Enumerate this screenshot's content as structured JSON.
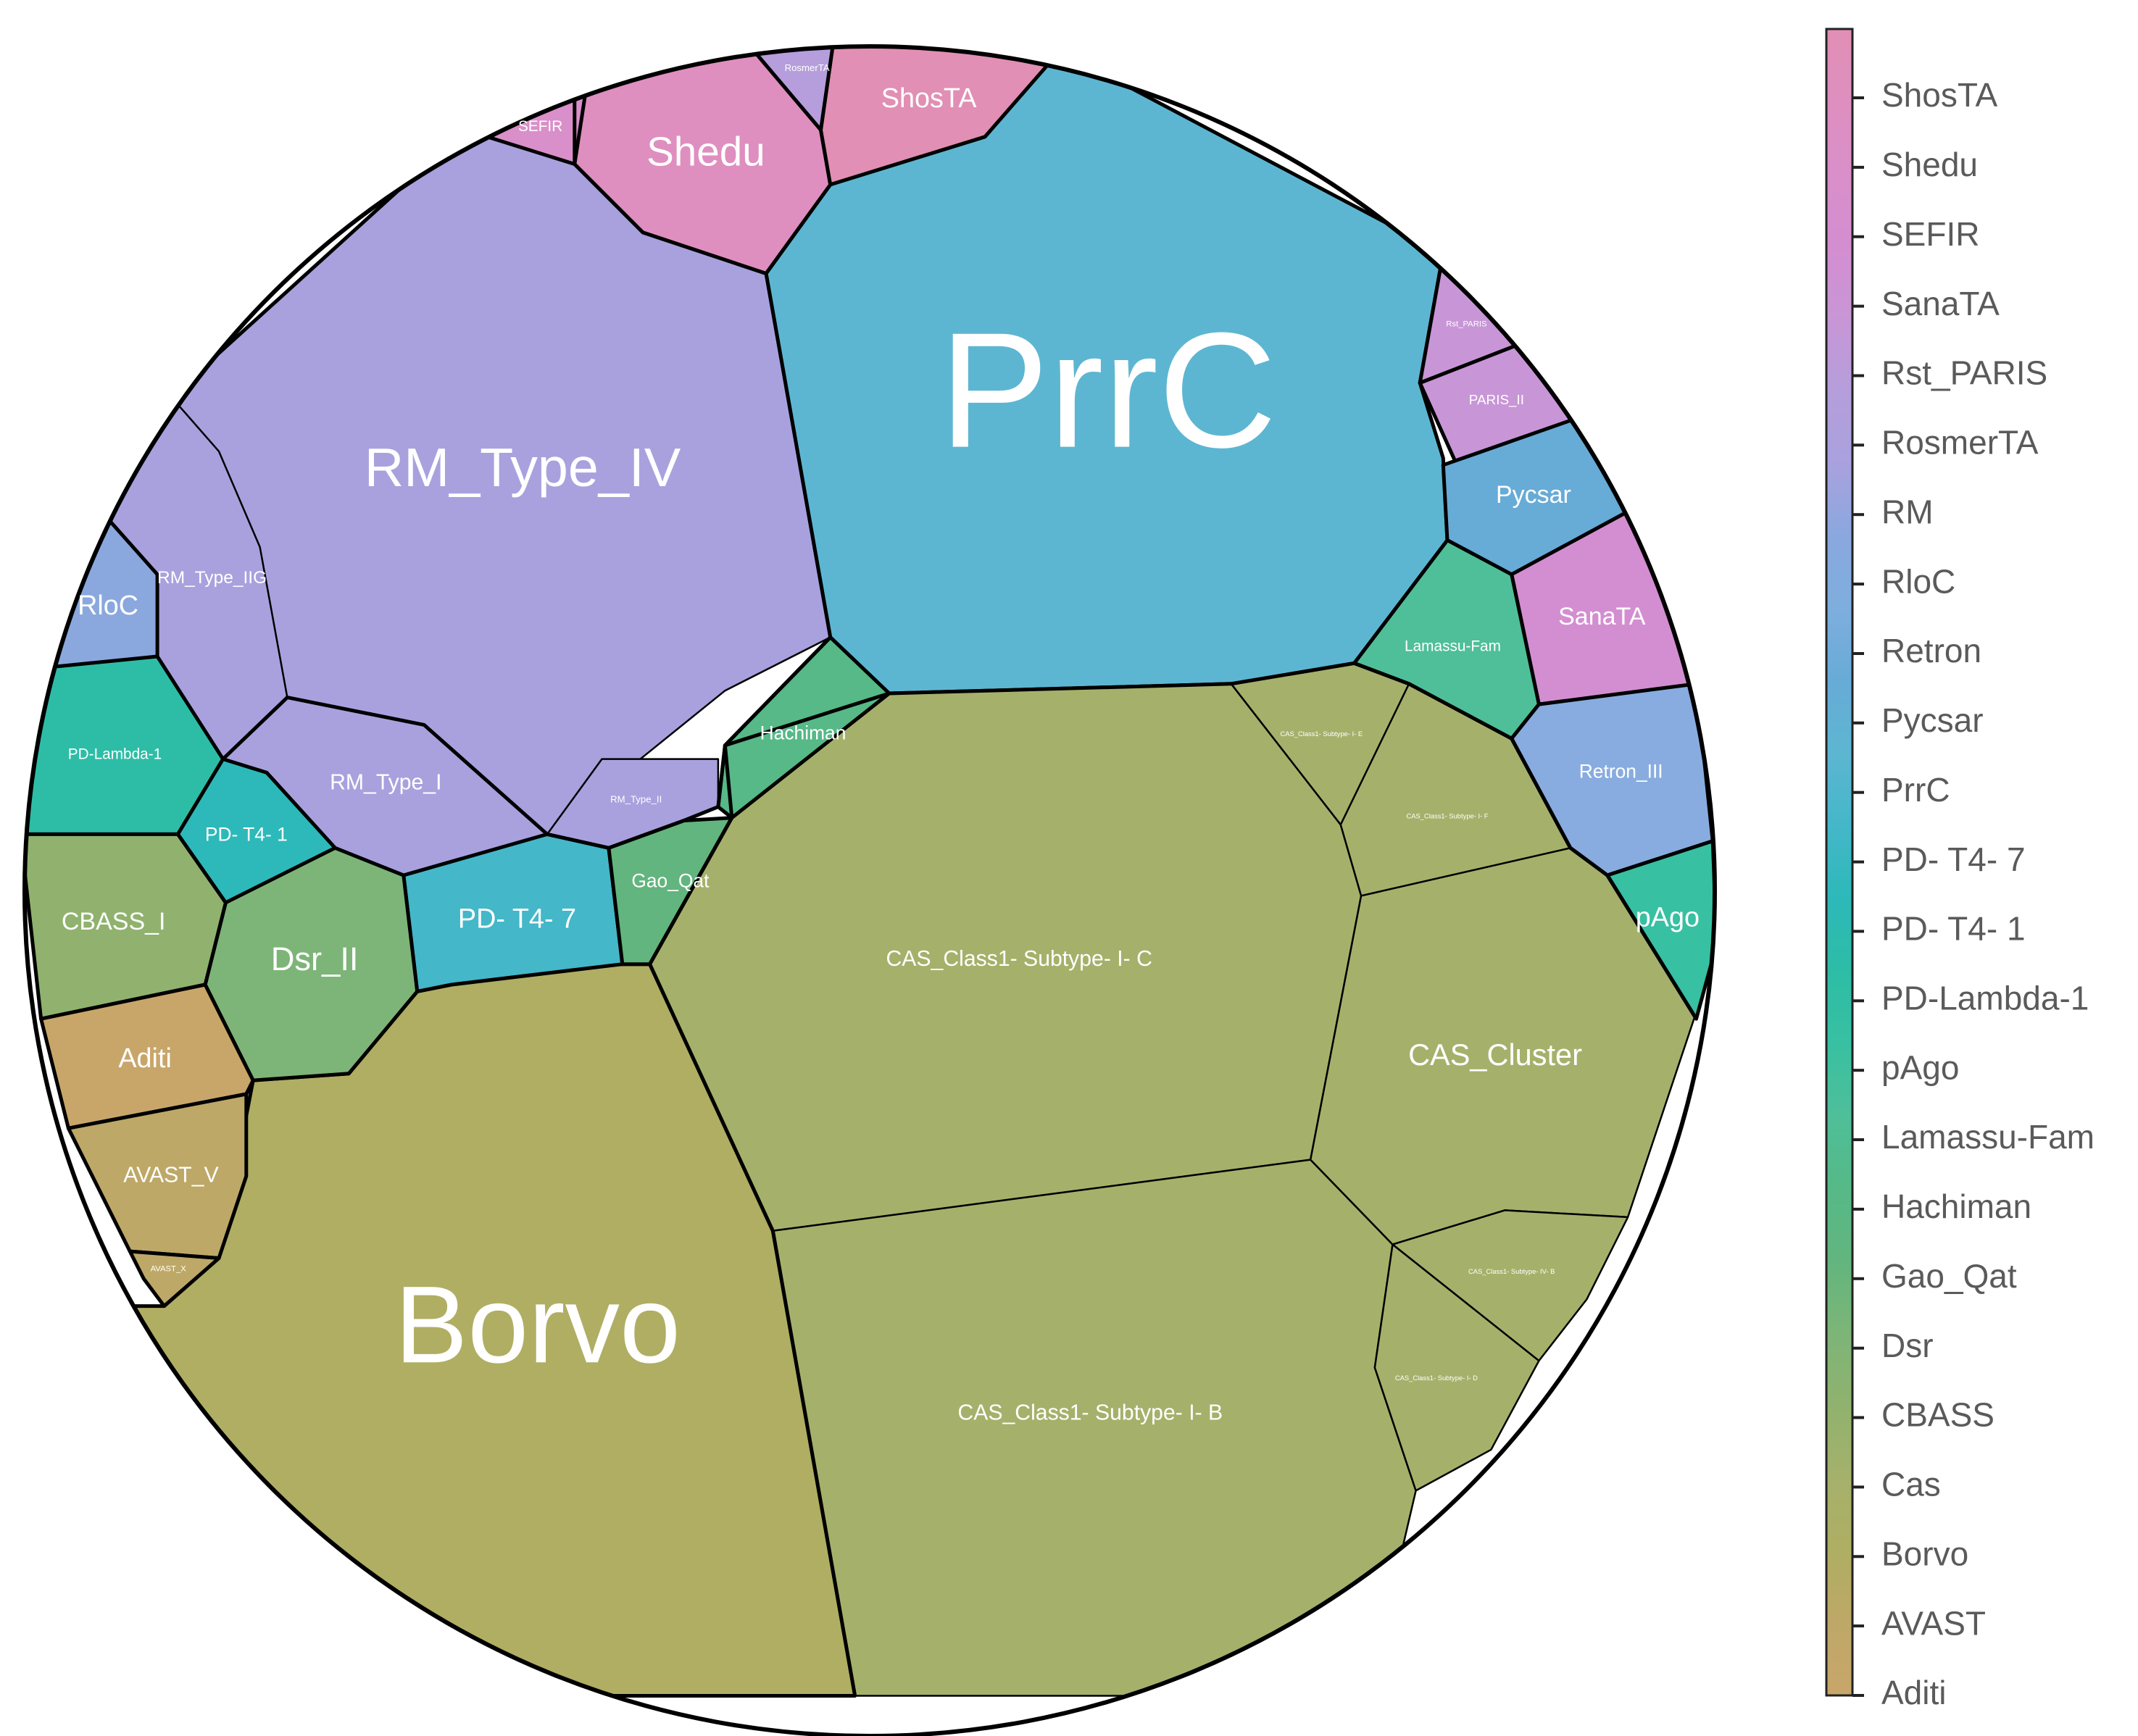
{
  "chart_data": {
    "type": "voronoi-treemap",
    "title": "",
    "cells": [
      {
        "label": "PrrC",
        "group": "PrrC",
        "color": "#5DB6D1"
      },
      {
        "label": "RM_Type_IV",
        "group": "RM",
        "color": "#A9A1DE"
      },
      {
        "label": "RM_Type_IIG",
        "group": "RM",
        "color": "#A9A1DE"
      },
      {
        "label": "RM_Type_I",
        "group": "RM",
        "color": "#A9A1DE"
      },
      {
        "label": "RM_Type_II",
        "group": "RM",
        "color": "#A9A1DE"
      },
      {
        "label": "Borvo",
        "group": "Borvo",
        "color": "#AFAE63"
      },
      {
        "label": "CAS_Class1- Subtype- I- C",
        "group": "Cas",
        "color": "#A5B16B"
      },
      {
        "label": "CAS_Class1- Subtype- I- B",
        "group": "Cas",
        "color": "#A5B16B"
      },
      {
        "label": "CAS_Cluster",
        "group": "Cas",
        "color": "#A5B16B"
      },
      {
        "label": "CAS_Class1- Subtype- I- E",
        "group": "Cas",
        "color": "#A5B16B"
      },
      {
        "label": "CAS_Class1- Subtype- I- F",
        "group": "Cas",
        "color": "#A5B16B"
      },
      {
        "label": "CAS_Class1- Subtype- IV- B",
        "group": "Cas",
        "color": "#A5B16B"
      },
      {
        "label": "CAS_Class1- Subtype- I- D",
        "group": "Cas",
        "color": "#A5B16B"
      },
      {
        "label": "Shedu",
        "group": "Shedu",
        "color": "#DE8FBF"
      },
      {
        "label": "ShosTA",
        "group": "ShosTA",
        "color": "#E18FB5"
      },
      {
        "label": "SEFIR",
        "group": "SEFIR",
        "color": "#D98FC9"
      },
      {
        "label": "RosmerTA",
        "group": "RosmerTA",
        "color": "#B59EDB"
      },
      {
        "label": "Rst_PARIS",
        "group": "Rst_PARIS",
        "color": "#C896D6"
      },
      {
        "label": "PARIS_II",
        "group": "Rst_PARIS",
        "color": "#C896D6"
      },
      {
        "label": "Pycsar",
        "group": "Pycsar",
        "color": "#67ABD7"
      },
      {
        "label": "SanaTA",
        "group": "SanaTA",
        "color": "#D38ED1"
      },
      {
        "label": "Lamassu-Fam",
        "group": "Lamassu-Fam",
        "color": "#4FBF99"
      },
      {
        "label": "Retron_III",
        "group": "Retron",
        "color": "#88ACDF"
      },
      {
        "label": "pAgo",
        "group": "pAgo",
        "color": "#38C0A2"
      },
      {
        "label": "RloC",
        "group": "RloC",
        "color": "#8AA8DE"
      },
      {
        "label": "PD-Lambda-1",
        "group": "PD-Lambda-1",
        "color": "#2DBDA6"
      },
      {
        "label": "PD- T4- 1",
        "group": "PD- T4- 1",
        "color": "#2DB9B9"
      },
      {
        "label": "PD- T4- 7",
        "group": "PD- T4- 7",
        "color": "#44B7C9"
      },
      {
        "label": "Hachiman",
        "group": "Hachiman",
        "color": "#56B987"
      },
      {
        "label": "Gao_Qat",
        "group": "Gao_Qat",
        "color": "#62B57E"
      },
      {
        "label": "Dsr_II",
        "group": "Dsr",
        "color": "#7DB578"
      },
      {
        "label": "CBASS_I",
        "group": "CBASS",
        "color": "#90B26E"
      },
      {
        "label": "Aditi",
        "group": "Aditi",
        "color": "#C8A66A"
      },
      {
        "label": "AVAST_V",
        "group": "AVAST",
        "color": "#BEA867"
      },
      {
        "label": "AVAST_X",
        "group": "AVAST",
        "color": "#BEA867"
      }
    ],
    "legend": {
      "placement": "right",
      "type": "colorbar",
      "entries": [
        {
          "label": "ShosTA",
          "color": "#E18FB5"
        },
        {
          "label": "Shedu",
          "color": "#DE8FBF"
        },
        {
          "label": "SEFIR",
          "color": "#D98FC9"
        },
        {
          "label": "SanaTA",
          "color": "#D38ED1"
        },
        {
          "label": "Rst_PARIS",
          "color": "#C896D6"
        },
        {
          "label": "RosmerTA",
          "color": "#B59EDB"
        },
        {
          "label": "RM",
          "color": "#A9A1DE"
        },
        {
          "label": "RloC",
          "color": "#8AA8DE"
        },
        {
          "label": "Retron",
          "color": "#7EAEDD"
        },
        {
          "label": "Pycsar",
          "color": "#67ABD7"
        },
        {
          "label": "PrrC",
          "color": "#5DB6D1"
        },
        {
          "label": "PD- T4- 7",
          "color": "#44B7C9"
        },
        {
          "label": "PD- T4- 1",
          "color": "#2DB9B9"
        },
        {
          "label": "PD-Lambda-1",
          "color": "#2DBDA6"
        },
        {
          "label": "pAgo",
          "color": "#38C0A2"
        },
        {
          "label": "Lamassu-Fam",
          "color": "#4FBF99"
        },
        {
          "label": "Hachiman",
          "color": "#56B987"
        },
        {
          "label": "Gao_Qat",
          "color": "#62B57E"
        },
        {
          "label": "Dsr",
          "color": "#7DB578"
        },
        {
          "label": "CBASS",
          "color": "#90B26E"
        },
        {
          "label": "Cas",
          "color": "#A5B16B"
        },
        {
          "label": "Borvo",
          "color": "#AFAE63"
        },
        {
          "label": "AVAST",
          "color": "#BEA867"
        },
        {
          "label": "Aditi",
          "color": "#C8A66A"
        }
      ]
    }
  }
}
